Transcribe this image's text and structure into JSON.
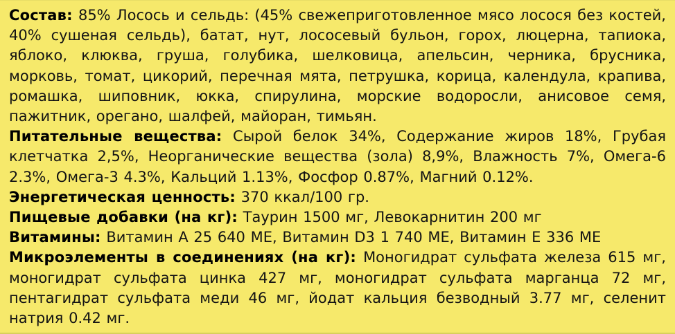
{
  "page": {
    "background_color": "#f6e96b",
    "text_color": "#141414",
    "language": "ru"
  },
  "sections": [
    {
      "label": "Состав:",
      "text": "85% Лосось и сельдь: (45% свежеприготовленное мясо лосося без костей, 40% сушеная сельдь), батат, нут, лососевый бульон, горох, люцерна, тапиока, яблоко, клюква, груша, голубика, шелковица, апельсин, черника, брусника, морковь, томат, цикорий, перечная мята, петрушка, корица, календула, крапива, ромашка, шиповник, юкка, спирулина, морские водоросли, анисовое семя, пажитник, орегано, шалфей, майоран, тимьян."
    },
    {
      "label": "Питательные вещества:",
      "text": "Сырой белок 34%, Содержание жиров 18%, Грубая клетчатка 2,5%, Неорганические вещества (зола) 8,9%, Влажность 7%, Омега-6 2.3%, Омега-3 4.3%, Кальций 1.13%, Фосфор 0.87%, Магний 0.12%."
    },
    {
      "label": "Энергетическая ценность:",
      "text": "370 ккал/100 гр."
    },
    {
      "label": "Пищевые добавки (на кг):",
      "text": "Таурин 1500 мг, Левокарнитин 200 мг"
    },
    {
      "label": "Витамины:",
      "text": "Витамин A 25 640 МЕ, Витамин D3 1 740 МЕ, Витамин E 336 МЕ"
    },
    {
      "label": "Микроэлементы в соединениях (на кг):",
      "text": "Моногидрат сульфата железа 615 мг, моногидрат сульфата цинка 427 мг, моногидрат сульфата марганца 72 мг, пентагидрат сульфата меди 46 мг, йодат кальция безводный 3.77 мг, селенит натрия 0.42 мг."
    }
  ]
}
